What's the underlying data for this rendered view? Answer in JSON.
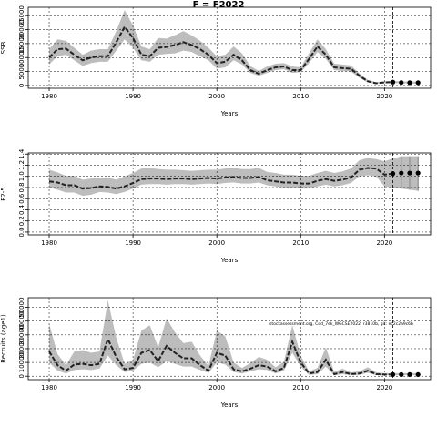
{
  "chart_data": [
    {
      "type": "line",
      "title": "F = F2022",
      "xlabel": "Years",
      "ylabel": "SSB",
      "xlim": [
        1977.5,
        2025.5
      ],
      "ylim": [
        -1000,
        28000
      ],
      "xticks": [
        1980,
        1990,
        2000,
        2010,
        2020
      ],
      "yticks": [
        0,
        5000,
        10000,
        15000,
        20000,
        25000
      ],
      "grid": true,
      "x": [
        1980,
        1981,
        1982,
        1983,
        1984,
        1985,
        1986,
        1987,
        1988,
        1989,
        1990,
        1991,
        1992,
        1993,
        1994,
        1995,
        1996,
        1997,
        1998,
        1999,
        2000,
        2001,
        2002,
        2003,
        2004,
        2005,
        2006,
        2007,
        2008,
        2009,
        2010,
        2011,
        2012,
        2013,
        2014,
        2015,
        2016,
        2017,
        2018,
        2019,
        2020,
        2021
      ],
      "median": [
        10000,
        13000,
        13200,
        11000,
        9000,
        10000,
        10500,
        10500,
        15500,
        21000,
        17000,
        11000,
        10500,
        13500,
        13800,
        14500,
        15500,
        14500,
        13000,
        11000,
        8000,
        8500,
        11000,
        9000,
        5500,
        4200,
        5500,
        6500,
        6800,
        5500,
        5500,
        9500,
        14000,
        11000,
        6500,
        6200,
        6000,
        3500,
        1500,
        800,
        1100,
        1200
      ],
      "lower": [
        7500,
        10500,
        11000,
        9000,
        7000,
        8000,
        8500,
        8500,
        12500,
        16500,
        13500,
        9000,
        8500,
        11000,
        11300,
        11500,
        12500,
        12000,
        10500,
        9000,
        6000,
        6500,
        9000,
        7500,
        4500,
        3500,
        4500,
        5500,
        5800,
        4500,
        4800,
        8000,
        12000,
        9500,
        5500,
        5200,
        5000,
        2800,
        1100,
        600,
        800,
        900
      ],
      "upper": [
        13000,
        16500,
        16000,
        13500,
        11000,
        12500,
        13000,
        13000,
        19500,
        27000,
        21500,
        14000,
        13000,
        17000,
        16800,
        18000,
        19500,
        18000,
        16000,
        13500,
        10500,
        11000,
        14000,
        11500,
        7000,
        5200,
        6800,
        7800,
        8000,
        6800,
        6500,
        11500,
        16500,
        13000,
        7800,
        7500,
        7200,
        4300,
        2000,
        1100,
        1500,
        1600
      ],
      "projection_x": [
        2021,
        2022,
        2023,
        2024
      ],
      "projection_median": [
        1200,
        1050,
        1000,
        1000
      ],
      "projection_lower": [
        900,
        750,
        700,
        650
      ],
      "projection_upper": [
        1600,
        1400,
        1350,
        1350
      ],
      "reference_line_x": 2021
    },
    {
      "type": "line",
      "xlabel": "Years",
      "ylabel": "F2-5",
      "xlim": [
        1977.5,
        2025.5
      ],
      "ylim": [
        -0.05,
        1.42
      ],
      "xticks": [
        1980,
        1990,
        2000,
        2010,
        2020
      ],
      "yticks": [
        0.0,
        0.2,
        0.4,
        0.6,
        0.8,
        1.0,
        1.2,
        1.4
      ],
      "ytick_labels": [
        "0.0",
        "0.2",
        "0.4",
        "0.6",
        "0.8",
        "1.0",
        "1.2",
        "1.4"
      ],
      "grid": true,
      "x": [
        1980,
        1981,
        1982,
        1983,
        1984,
        1985,
        1986,
        1987,
        1988,
        1989,
        1990,
        1991,
        1992,
        1993,
        1994,
        1995,
        1996,
        1997,
        1998,
        1999,
        2000,
        2001,
        2002,
        2003,
        2004,
        2005,
        2006,
        2007,
        2008,
        2009,
        2010,
        2011,
        2012,
        2013,
        2014,
        2015,
        2016,
        2017,
        2018,
        2019,
        2020,
        2021
      ],
      "median": [
        0.91,
        0.89,
        0.84,
        0.84,
        0.78,
        0.79,
        0.82,
        0.81,
        0.78,
        0.82,
        0.88,
        0.95,
        0.96,
        0.96,
        0.95,
        0.96,
        0.96,
        0.95,
        0.96,
        0.97,
        0.96,
        0.98,
        0.99,
        0.97,
        0.97,
        0.99,
        0.93,
        0.91,
        0.89,
        0.89,
        0.87,
        0.87,
        0.92,
        0.95,
        0.92,
        0.94,
        0.98,
        1.12,
        1.15,
        1.14,
        1.03,
        1.05
      ],
      "lower": [
        0.8,
        0.76,
        0.71,
        0.71,
        0.65,
        0.67,
        0.72,
        0.71,
        0.68,
        0.72,
        0.78,
        0.85,
        0.86,
        0.86,
        0.85,
        0.86,
        0.86,
        0.85,
        0.86,
        0.87,
        0.86,
        0.88,
        0.89,
        0.87,
        0.87,
        0.89,
        0.84,
        0.82,
        0.8,
        0.8,
        0.78,
        0.78,
        0.82,
        0.85,
        0.82,
        0.84,
        0.88,
        1.0,
        1.02,
        1.0,
        0.82,
        0.8
      ],
      "upper": [
        1.12,
        1.07,
        1.01,
        1.01,
        0.94,
        0.96,
        0.98,
        0.98,
        0.94,
        1.0,
        1.06,
        1.14,
        1.15,
        1.13,
        1.12,
        1.12,
        1.11,
        1.1,
        1.11,
        1.12,
        1.12,
        1.14,
        1.15,
        1.13,
        1.13,
        1.15,
        1.08,
        1.06,
        1.03,
        1.03,
        1.01,
        1.01,
        1.06,
        1.1,
        1.06,
        1.09,
        1.14,
        1.29,
        1.33,
        1.31,
        1.27,
        1.32
      ],
      "projection_x": [
        2021,
        2022,
        2023,
        2024
      ],
      "projection_median": [
        1.05,
        1.06,
        1.06,
        1.06
      ],
      "projection_lower": [
        0.8,
        0.78,
        0.76,
        0.74
      ],
      "projection_upper": [
        1.33,
        1.36,
        1.36,
        1.36
      ],
      "reference_line_x": 2021
    },
    {
      "type": "line",
      "xlabel": "Years",
      "ylabel": "Recruits (age1)",
      "xlim": [
        1977.5,
        2025.5
      ],
      "ylim": [
        -2500,
        57000
      ],
      "xticks": [
        1980,
        1990,
        2000,
        2010,
        2020
      ],
      "yticks": [
        0,
        10000,
        20000,
        30000,
        40000,
        50000
      ],
      "grid": true,
      "annotation": "stockassessment.org, Cod_7ek_WGCSE2022, r3810b,  git: ec2c2a9c6b",
      "x": [
        1980,
        1981,
        1982,
        1983,
        1984,
        1985,
        1986,
        1987,
        1988,
        1989,
        1990,
        1991,
        1992,
        1993,
        1994,
        1995,
        1996,
        1997,
        1998,
        1999,
        2000,
        2001,
        2002,
        2003,
        2004,
        2005,
        2006,
        2007,
        2008,
        2009,
        2010,
        2011,
        2012,
        2013,
        2014,
        2015,
        2016,
        2017,
        2018,
        2019,
        2020,
        2021
      ],
      "median": [
        18000,
        8000,
        4000,
        8500,
        9000,
        8000,
        9000,
        27000,
        14000,
        5000,
        6000,
        17000,
        19000,
        11000,
        22000,
        17000,
        13000,
        13000,
        8000,
        4000,
        17000,
        15000,
        5000,
        3500,
        5500,
        8000,
        7000,
        3500,
        6000,
        25000,
        10000,
        2000,
        3000,
        12000,
        1500,
        3000,
        1500,
        2000,
        4000,
        1500,
        1200,
        1200
      ],
      "lower": [
        10000,
        4000,
        2000,
        4500,
        5000,
        4500,
        5500,
        15000,
        8000,
        3000,
        4000,
        9000,
        10000,
        6500,
        11000,
        9000,
        7000,
        7000,
        4500,
        2500,
        10000,
        8500,
        3000,
        2000,
        3500,
        5000,
        4500,
        2000,
        4000,
        17000,
        7000,
        1000,
        1500,
        7000,
        800,
        1500,
        800,
        1000,
        2500,
        800,
        700,
        700
      ],
      "upper": [
        38000,
        16000,
        8000,
        18000,
        19000,
        17000,
        18000,
        55000,
        28000,
        9000,
        12000,
        33000,
        37000,
        21000,
        42000,
        32000,
        24000,
        25000,
        15000,
        7500,
        33000,
        29000,
        10000,
        6000,
        9500,
        14000,
        12000,
        6500,
        10500,
        37000,
        15000,
        3500,
        6000,
        21000,
        3000,
        5500,
        2800,
        3500,
        6500,
        2800,
        2200,
        2200
      ],
      "projection_x": [
        2021,
        2022,
        2023,
        2024
      ],
      "projection_median": [
        1200,
        1200,
        1200,
        1200
      ],
      "projection_lower": [
        700,
        700,
        700,
        700
      ],
      "projection_upper": [
        2200,
        2200,
        2200,
        2200
      ],
      "reference_line_x": 2021
    }
  ]
}
